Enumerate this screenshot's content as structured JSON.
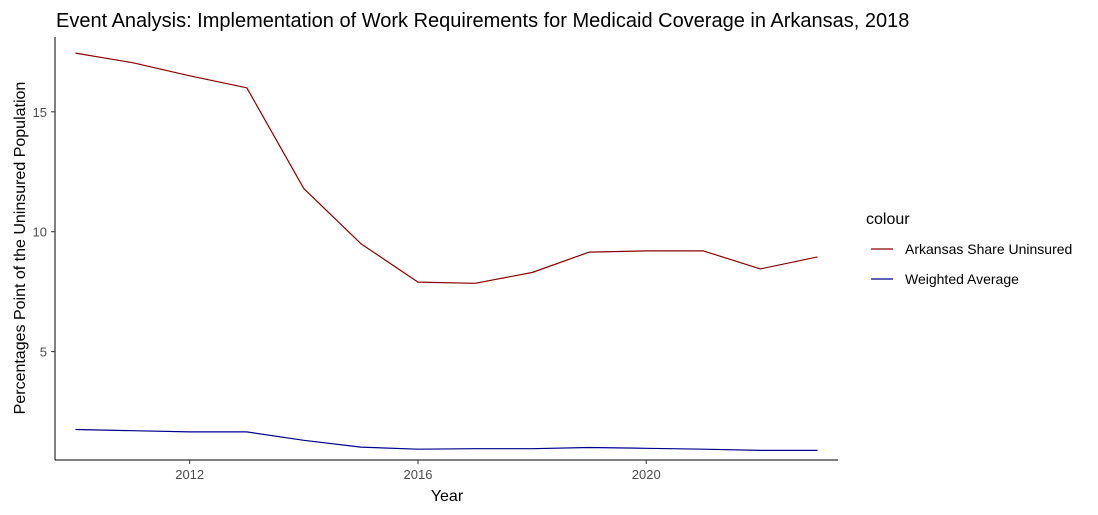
{
  "chart_data": {
    "type": "line",
    "title": "Event Analysis: Implementation of Work Requirements for Medicaid Coverage in Arkansas, 2018",
    "xlabel": "Year",
    "ylabel": "Percentages Point of the Uninsured Population",
    "x": [
      2010,
      2011,
      2012,
      2013,
      2014,
      2015,
      2016,
      2017,
      2018,
      2019,
      2020,
      2021,
      2022,
      2023
    ],
    "xlim": [
      2009.64,
      2023.36
    ],
    "ylim": [
      0.48,
      18.12
    ],
    "xticks": [
      2012,
      2016,
      2020
    ],
    "xtick_labels": [
      "2012",
      "2016",
      "2020"
    ],
    "yticks": [
      5,
      10,
      15
    ],
    "ytick_labels": [
      "5",
      "10",
      "15"
    ],
    "grid": false,
    "legend": {
      "title": "colour",
      "placement": "right",
      "entries": [
        "Arkansas Share Uninsured",
        "Weighted Average"
      ]
    },
    "series": [
      {
        "name": "Arkansas Share Uninsured",
        "color": "#8B0000",
        "values": [
          17.45,
          17.05,
          16.5,
          16.0,
          11.8,
          9.5,
          7.9,
          7.85,
          8.3,
          9.15,
          9.2,
          9.2,
          8.45,
          8.95
        ]
      },
      {
        "name": "Weighted Average",
        "color": "#00008B",
        "values": [
          1.75,
          1.7,
          1.65,
          1.65,
          1.3,
          1.02,
          0.93,
          0.95,
          0.95,
          1.0,
          0.97,
          0.93,
          0.88,
          0.88
        ]
      }
    ]
  }
}
